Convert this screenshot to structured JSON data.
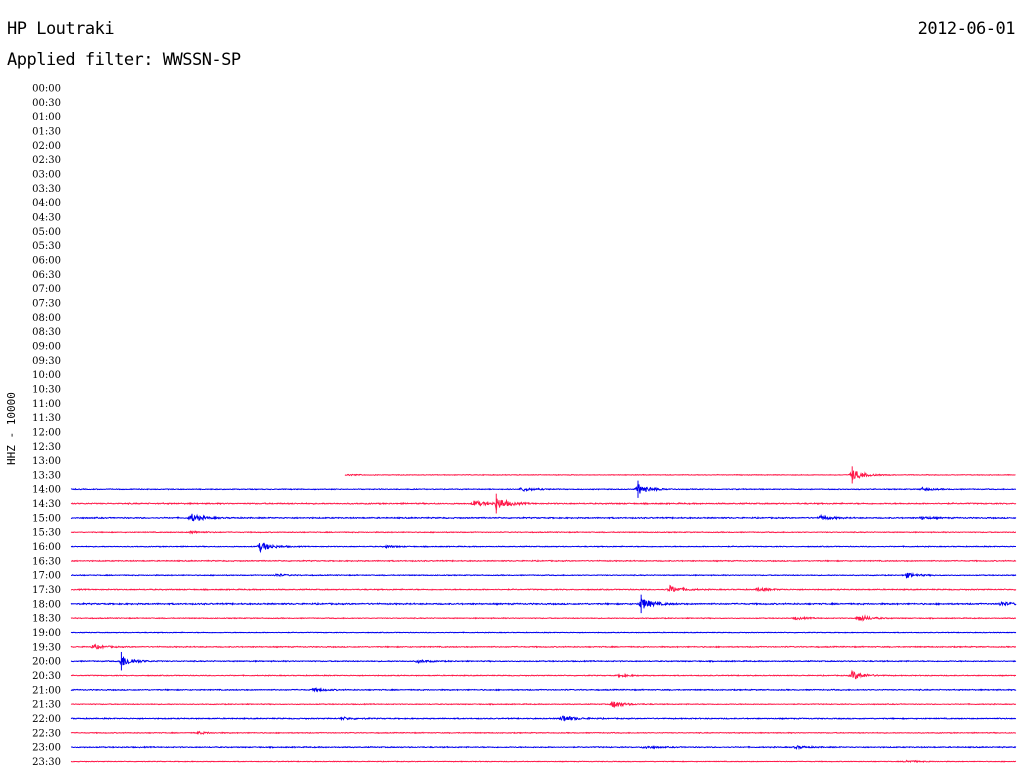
{
  "header": {
    "station": "HP Loutraki",
    "date": "2012-06-01",
    "filter": "Applied filter: WWSSN-SP",
    "channel": "HHZ - 10000"
  },
  "colors": {
    "odd_trace": "#0000ee",
    "even_trace": "#ff1a4a"
  },
  "chart_data": {
    "type": "line",
    "title": "HP Loutraki",
    "subtitle": "Applied filter: WWSSN-SP",
    "ylabel": "HHZ - 10000",
    "xlabel": "",
    "row_labels": [
      "00:00",
      "00:30",
      "01:00",
      "01:30",
      "02:00",
      "02:30",
      "03:00",
      "03:30",
      "04:00",
      "04:30",
      "05:00",
      "05:30",
      "06:00",
      "06:30",
      "07:00",
      "07:30",
      "08:00",
      "08:30",
      "09:00",
      "09:30",
      "10:00",
      "10:30",
      "11:00",
      "11:30",
      "12:00",
      "12:30",
      "13:00",
      "13:30",
      "14:00",
      "14:30",
      "15:00",
      "15:30",
      "16:00",
      "16:30",
      "17:00",
      "17:30",
      "18:00",
      "18:30",
      "19:00",
      "19:30",
      "20:00",
      "20:30",
      "21:00",
      "21:30",
      "22:00",
      "22:30",
      "23:00",
      "23:30"
    ],
    "x_range_minutes": [
      0,
      30
    ],
    "recording_start": {
      "row": "13:30",
      "minute": 8.7
    },
    "series": [
      {
        "row": "13:30",
        "noise": 0.4,
        "events": [
          [
            8.8,
            0.3
          ],
          [
            24.8,
            2.6
          ]
        ]
      },
      {
        "row": "14:00",
        "noise": 0.5,
        "events": [
          [
            14.3,
            1.0
          ],
          [
            18.0,
            2.6
          ],
          [
            27.0,
            0.7
          ]
        ]
      },
      {
        "row": "14:30",
        "noise": 0.7,
        "events": [
          [
            12.8,
            1.4
          ],
          [
            13.5,
            3.0
          ]
        ]
      },
      {
        "row": "15:00",
        "noise": 0.7,
        "events": [
          [
            3.8,
            2.0
          ],
          [
            23.8,
            1.0
          ],
          [
            27.0,
            0.6
          ]
        ]
      },
      {
        "row": "15:30",
        "noise": 0.5,
        "events": [
          [
            3.8,
            0.6
          ]
        ]
      },
      {
        "row": "16:00",
        "noise": 0.5,
        "events": [
          [
            6.0,
            2.3
          ],
          [
            10.0,
            0.5
          ]
        ]
      },
      {
        "row": "16:30",
        "noise": 0.6,
        "events": []
      },
      {
        "row": "17:00",
        "noise": 0.5,
        "events": [
          [
            26.5,
            1.2
          ],
          [
            6.5,
            0.6
          ]
        ]
      },
      {
        "row": "17:30",
        "noise": 0.6,
        "events": [
          [
            19.0,
            1.8
          ],
          [
            21.8,
            0.8
          ]
        ]
      },
      {
        "row": "18:00",
        "noise": 0.8,
        "events": [
          [
            18.1,
            2.8
          ],
          [
            29.5,
            0.9
          ]
        ]
      },
      {
        "row": "18:30",
        "noise": 0.5,
        "events": [
          [
            25.0,
            1.6
          ],
          [
            23.0,
            0.6
          ]
        ]
      },
      {
        "row": "19:00",
        "noise": 0.4,
        "events": []
      },
      {
        "row": "19:30",
        "noise": 0.6,
        "events": [
          [
            0.7,
            1.0
          ]
        ]
      },
      {
        "row": "20:00",
        "noise": 0.6,
        "events": [
          [
            1.6,
            2.8
          ],
          [
            11.0,
            0.7
          ]
        ]
      },
      {
        "row": "20:30",
        "noise": 0.5,
        "events": [
          [
            24.8,
            2.2
          ],
          [
            17.4,
            0.6
          ]
        ]
      },
      {
        "row": "21:00",
        "noise": 0.6,
        "events": [
          [
            7.7,
            0.8
          ]
        ]
      },
      {
        "row": "21:30",
        "noise": 0.5,
        "events": [
          [
            17.2,
            1.6
          ]
        ]
      },
      {
        "row": "22:00",
        "noise": 0.6,
        "events": [
          [
            15.6,
            1.6
          ],
          [
            8.6,
            0.6
          ]
        ]
      },
      {
        "row": "22:30",
        "noise": 0.5,
        "events": [
          [
            4.0,
            0.6
          ]
        ]
      },
      {
        "row": "23:00",
        "noise": 0.6,
        "events": [
          [
            18.2,
            0.7
          ],
          [
            23.0,
            0.6
          ]
        ]
      },
      {
        "row": "23:30",
        "noise": 0.4,
        "events": [
          [
            26.5,
            0.6
          ]
        ]
      }
    ]
  }
}
